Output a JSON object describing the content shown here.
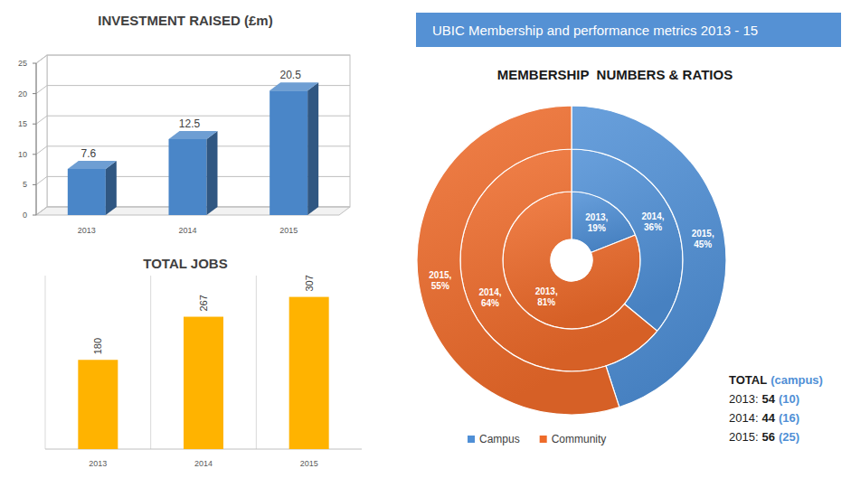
{
  "title": "UBIC Membership and performance metrics 2013 - 15",
  "chart_data": [
    {
      "type": "bar",
      "title": "INVESTMENT RAISED (£m)",
      "categories": [
        "2013",
        "2014",
        "2015"
      ],
      "values": [
        7.6,
        12.5,
        20.5
      ],
      "color": "#4a86c8",
      "ylim": [
        0,
        25
      ],
      "yticks": [
        0,
        5,
        10,
        15,
        20,
        25
      ],
      "grid": true,
      "data_labels": true
    },
    {
      "type": "bar",
      "title": "TOTAL JOBS",
      "categories": [
        "2013",
        "2014",
        "2015"
      ],
      "values": [
        180,
        267,
        307
      ],
      "color": "#ffb300",
      "ylim": [
        0,
        350
      ],
      "data_labels": true,
      "tick_labels": "x"
    },
    {
      "type": "donut",
      "title": "MEMBERSHIP  NUMBERS & RATIOS",
      "series": [
        {
          "name": "Campus",
          "color": "#4f8fd6",
          "values": [
            19,
            36,
            45
          ],
          "value_labels": [
            "2013, 19%",
            "2014, 36%",
            "2015, 45%"
          ]
        },
        {
          "name": "Community",
          "color": "#ee6b2a",
          "values": [
            81,
            64,
            55
          ],
          "value_labels": [
            "2013, 81%",
            "2014, 64%",
            "2015, 55%"
          ]
        }
      ],
      "data_labels": true,
      "legend": "bottom"
    }
  ],
  "totals": {
    "title": "TOTAL",
    "subtitle": "(campus)",
    "rows": [
      {
        "label": "2013:",
        "total": 54,
        "campus": {
          "value": 10,
          "label": "(10)"
        }
      },
      {
        "label": "2014:",
        "total": 44,
        "campus": {
          "value": 16,
          "label": "(16)"
        }
      },
      {
        "label": "2015:",
        "total": 56,
        "campus": {
          "value": 25,
          "label": "(25)"
        }
      }
    ]
  }
}
